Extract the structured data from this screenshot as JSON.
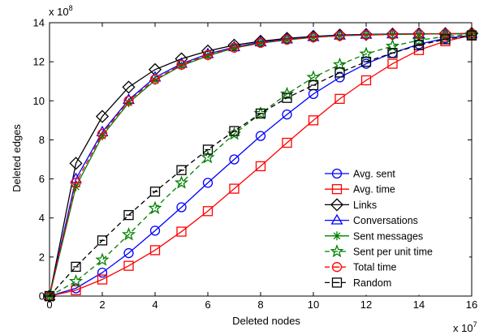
{
  "chart_data": {
    "type": "line",
    "xlabel": "Deleted nodes",
    "ylabel": "Deleted edges",
    "x_multiplier_label": "x 10",
    "x_multiplier_exp": "7",
    "y_multiplier_label": "x 10",
    "y_multiplier_exp": "8",
    "x_scale": 10000000,
    "y_scale": 100000000,
    "xlim": [
      0,
      16
    ],
    "ylim": [
      0,
      14
    ],
    "x_ticks": [
      0,
      2,
      4,
      6,
      8,
      10,
      12,
      14,
      16
    ],
    "y_ticks": [
      0,
      2,
      4,
      6,
      8,
      10,
      12,
      14
    ],
    "grid": false,
    "legend_position": "bottom-right",
    "x": [
      0,
      1,
      2,
      3,
      4,
      5,
      6,
      7,
      8,
      9,
      10,
      11,
      12,
      13,
      14,
      15,
      16
    ],
    "series": [
      {
        "name": "Avg. sent",
        "color": "#0000ff",
        "marker": "circle",
        "dash": "solid",
        "values": [
          0,
          0.4,
          1.2,
          2.2,
          3.35,
          4.55,
          5.8,
          7.0,
          8.2,
          9.3,
          10.35,
          11.2,
          11.9,
          12.45,
          12.9,
          13.2,
          13.35
        ]
      },
      {
        "name": "Avg. time",
        "color": "#ff0000",
        "marker": "square",
        "dash": "solid",
        "values": [
          0,
          0.3,
          0.85,
          1.55,
          2.35,
          3.3,
          4.35,
          5.5,
          6.65,
          7.85,
          9.0,
          10.1,
          11.05,
          11.9,
          12.6,
          13.05,
          13.35
        ]
      },
      {
        "name": "Links",
        "color": "#000000",
        "marker": "diamond",
        "dash": "solid",
        "values": [
          0,
          6.8,
          9.2,
          10.7,
          11.6,
          12.15,
          12.55,
          12.85,
          13.05,
          13.2,
          13.3,
          13.37,
          13.4,
          13.42,
          13.43,
          13.44,
          13.45
        ]
      },
      {
        "name": "Conversations",
        "color": "#0000ff",
        "marker": "triangle",
        "dash": "solid",
        "values": [
          0,
          6.0,
          8.4,
          10.05,
          11.2,
          11.9,
          12.4,
          12.75,
          13.0,
          13.15,
          13.27,
          13.35,
          13.39,
          13.41,
          13.42,
          13.43,
          13.44
        ]
      },
      {
        "name": "Sent messages",
        "color": "#008000",
        "marker": "asterisk",
        "dash": "solid",
        "values": [
          0,
          5.6,
          8.2,
          9.9,
          11.05,
          11.8,
          12.3,
          12.7,
          12.95,
          13.12,
          13.25,
          13.33,
          13.37,
          13.4,
          13.42,
          13.43,
          13.44
        ]
      },
      {
        "name": "Sent per unit time",
        "color": "#008000",
        "marker": "star",
        "dash": "dashed",
        "values": [
          0,
          0.75,
          1.85,
          3.15,
          4.5,
          5.8,
          7.1,
          8.3,
          9.35,
          10.35,
          11.2,
          11.85,
          12.4,
          12.8,
          13.1,
          13.3,
          13.4
        ]
      },
      {
        "name": "Total time",
        "color": "#ff0000",
        "marker": "circle-minus",
        "dash": "dashed",
        "values": [
          0,
          5.8,
          8.3,
          10.0,
          11.1,
          11.85,
          12.35,
          12.72,
          12.97,
          13.13,
          13.25,
          13.33,
          13.38,
          13.4,
          13.42,
          13.43,
          13.44
        ]
      },
      {
        "name": "Random",
        "color": "#000000",
        "marker": "square-minus",
        "dash": "dashed",
        "values": [
          0,
          1.5,
          2.85,
          4.15,
          5.35,
          6.45,
          7.5,
          8.45,
          9.35,
          10.15,
          10.8,
          11.45,
          12.0,
          12.45,
          12.85,
          13.15,
          13.35
        ]
      }
    ]
  }
}
